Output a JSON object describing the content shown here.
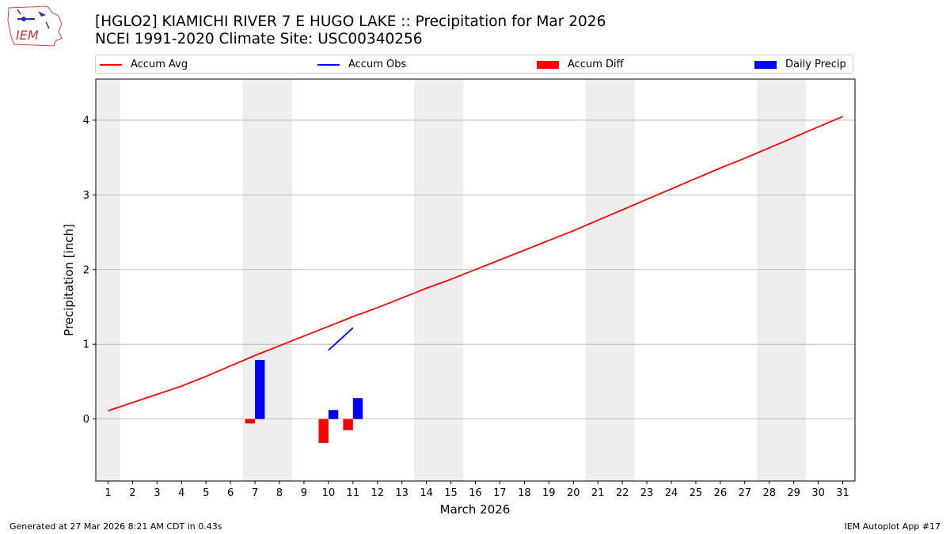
{
  "header": {
    "title_line1": "[HGLO2] KIAMICHI RIVER 7 E HUGO LAKE :: Precipitation for Mar 2026",
    "title_line2": "NCEI 1991-2020 Climate Site: USC00340256",
    "logo_text": "IEM"
  },
  "footer": {
    "generated": "Generated at 27 Mar 2026 8:21 AM CDT in 0.43s",
    "app": "IEM Autoplot App #17"
  },
  "colors": {
    "accum_avg": "#ff0000",
    "accum_obs": "#0000ff",
    "accum_diff": "#ff0000",
    "daily_precip": "#0000ff",
    "weekend_shade": "#eeeeee",
    "grid": "#b0b0b0"
  },
  "chart_data": {
    "type": "line+bar",
    "title": "[HGLO2] KIAMICHI RIVER 7 E HUGO LAKE :: Precipitation for Mar 2026",
    "xlabel": "March 2026",
    "ylabel": "Precipitation [inch]",
    "xlim": [
      0.5,
      31.5
    ],
    "ylim": [
      -0.83,
      4.55
    ],
    "yticks": [
      0,
      1,
      2,
      3,
      4
    ],
    "y_grid": true,
    "legend_position": "top",
    "days": [
      1,
      2,
      3,
      4,
      5,
      6,
      7,
      8,
      9,
      10,
      11,
      12,
      13,
      14,
      15,
      16,
      17,
      18,
      19,
      20,
      21,
      22,
      23,
      24,
      25,
      26,
      27,
      28,
      29,
      30,
      31
    ],
    "weekend_shading": [
      [
        0.5,
        1.5
      ],
      [
        6.5,
        8.5
      ],
      [
        13.5,
        15.5
      ],
      [
        20.5,
        22.5
      ],
      [
        27.5,
        29.5
      ]
    ],
    "legend": [
      "Accum Avg",
      "Accum Obs",
      "Accum Diff",
      "Daily Precip"
    ],
    "series": [
      {
        "name": "Accum Avg",
        "kind": "line",
        "x": [
          1,
          2,
          3,
          4,
          5,
          6,
          7,
          8,
          9,
          10,
          11,
          12,
          13,
          14,
          15,
          16,
          17,
          18,
          19,
          20,
          21,
          22,
          23,
          24,
          25,
          26,
          27,
          28,
          29,
          30,
          31
        ],
        "values": [
          0.11,
          0.22,
          0.33,
          0.44,
          0.57,
          0.71,
          0.85,
          0.98,
          1.11,
          1.24,
          1.37,
          1.49,
          1.62,
          1.75,
          1.87,
          2.0,
          2.13,
          2.26,
          2.39,
          2.52,
          2.66,
          2.8,
          2.94,
          3.08,
          3.22,
          3.36,
          3.49,
          3.63,
          3.77,
          3.91,
          4.05
        ]
      },
      {
        "name": "Accum Obs",
        "kind": "line",
        "x": [
          10,
          11
        ],
        "values": [
          0.92,
          1.22
        ]
      },
      {
        "name": "Accum Diff",
        "kind": "bar",
        "x": [
          7,
          10,
          11
        ],
        "values": [
          -0.06,
          -0.32,
          -0.15
        ]
      },
      {
        "name": "Daily Precip",
        "kind": "bar",
        "x": [
          7,
          10,
          11
        ],
        "values": [
          0.79,
          0.12,
          0.28
        ]
      }
    ]
  }
}
